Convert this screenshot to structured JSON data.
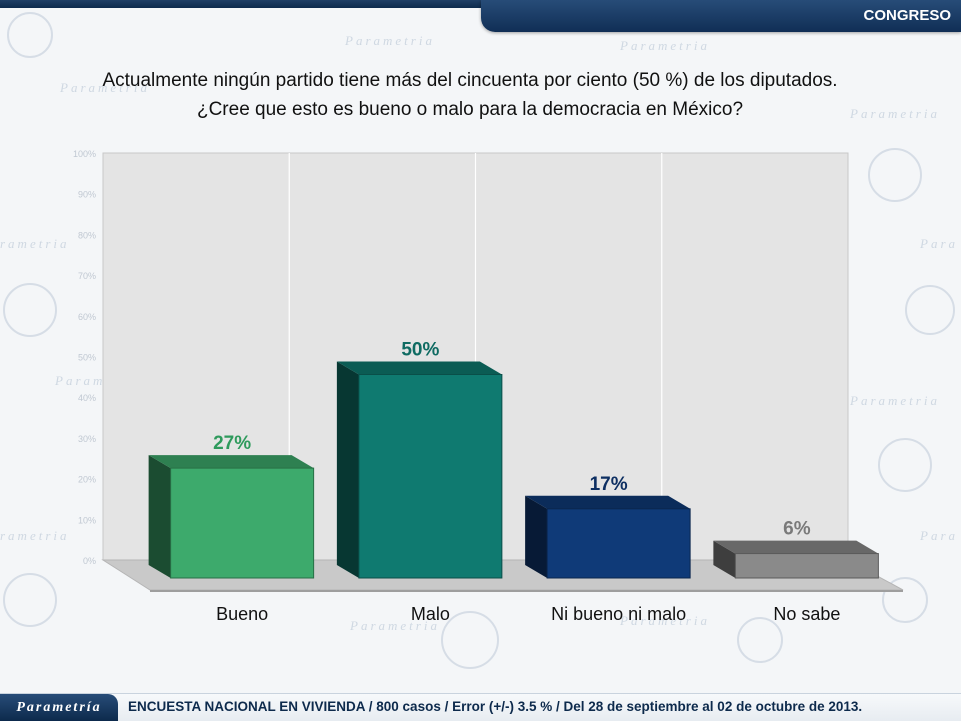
{
  "header": {
    "section_label": "CONGRESO"
  },
  "question": {
    "line1": "Actualmente ningún partido tiene más del cincuenta por ciento (50 %) de los diputados.",
    "line2": "¿Cree que esto es bueno o malo para la democracia en México?"
  },
  "chart_data": {
    "type": "bar",
    "title": "",
    "categories": [
      "Bueno",
      "Malo",
      "Ni bueno ni malo",
      "No sabe"
    ],
    "values": [
      27,
      50,
      17,
      6
    ],
    "value_labels": [
      "27%",
      "50%",
      "17%",
      "6%"
    ],
    "ylim": [
      0,
      100
    ],
    "yticks": [
      "0%",
      "10%",
      "20%",
      "30%",
      "40%",
      "50%",
      "60%",
      "70%",
      "80%",
      "90%",
      "100%"
    ],
    "grid": true,
    "legend": "none",
    "colors": [
      "#3daa6c",
      "#0f7a70",
      "#0f3a78",
      "#8a8a8a"
    ],
    "label_colors": [
      "#2e9a5c",
      "#0f6b62",
      "#0d2f62",
      "#7a7a7a"
    ]
  },
  "watermark": {
    "brand": "Parametria"
  },
  "footer": {
    "logo": "Parametría",
    "note": "ENCUESTA NACIONAL EN VIVIENDA / 800 casos / Error (+/-) 3.5 % / Del 28 de septiembre al 02 de octubre de 2013."
  }
}
